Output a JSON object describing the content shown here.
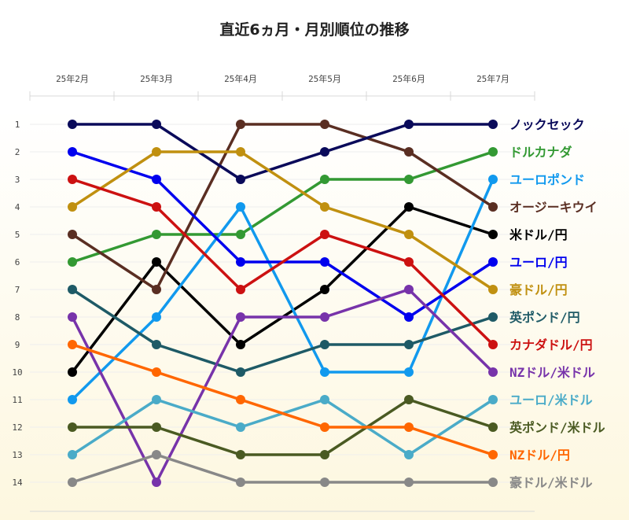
{
  "chart_data": {
    "type": "line",
    "title": "直近6ヵ月・月別順位の推移",
    "categories": [
      "25年2月",
      "25年3月",
      "25年4月",
      "25年5月",
      "25年6月",
      "25年7月"
    ],
    "y_ticks": [
      "1",
      "2",
      "3",
      "4",
      "5",
      "6",
      "7",
      "8",
      "9",
      "10",
      "11",
      "12",
      "13",
      "14"
    ],
    "y_reversed": true,
    "ylim": [
      1,
      14
    ],
    "legend_placement": "right",
    "grid": true,
    "series": [
      {
        "name": "米ドル/円",
        "color": "#000000",
        "values": [
          10,
          6,
          9,
          7,
          4,
          5
        ]
      },
      {
        "name": "ドルカナダ",
        "color": "#339933",
        "values": [
          6,
          5,
          5,
          3,
          3,
          2
        ]
      },
      {
        "name": "ユーロポンド",
        "color": "#1199ee",
        "values": [
          11,
          8,
          4,
          10,
          10,
          3
        ]
      },
      {
        "name": "オージーキウイ",
        "color": "#5a2e22",
        "values": [
          5,
          7,
          1,
          1,
          2,
          4
        ]
      },
      {
        "name": "ノックセック",
        "color": "#0a0a5a",
        "values": [
          1,
          1,
          3,
          2,
          1,
          1
        ]
      },
      {
        "name": "ユーロ/円",
        "color": "#0000ee",
        "values": [
          2,
          3,
          6,
          6,
          8,
          6
        ]
      },
      {
        "name": "豪ドル/円",
        "color": "#c09010",
        "values": [
          4,
          2,
          2,
          4,
          5,
          7
        ]
      },
      {
        "name": "英ポンド/円",
        "color": "#1e5a66",
        "values": [
          7,
          9,
          10,
          9,
          9,
          8
        ]
      },
      {
        "name": "カナダドル/円",
        "color": "#cc1111",
        "values": [
          3,
          4,
          7,
          5,
          6,
          9
        ]
      },
      {
        "name": "NZドル/米ドル",
        "color": "#7733aa",
        "values": [
          8,
          14,
          8,
          8,
          7,
          10
        ]
      },
      {
        "name": "ユーロ/米ドル",
        "color": "#4aabc8",
        "values": [
          13,
          11,
          12,
          11,
          13,
          11
        ]
      },
      {
        "name": "英ポンド/米ドル",
        "color": "#4a5a22",
        "values": [
          12,
          12,
          13,
          13,
          11,
          12
        ]
      },
      {
        "name": "NZドル/円",
        "color": "#ff6600",
        "values": [
          9,
          10,
          11,
          12,
          12,
          13
        ]
      },
      {
        "name": "豪ドル/米ドル",
        "color": "#888888",
        "values": [
          14,
          13,
          14,
          14,
          14,
          14
        ]
      }
    ]
  }
}
